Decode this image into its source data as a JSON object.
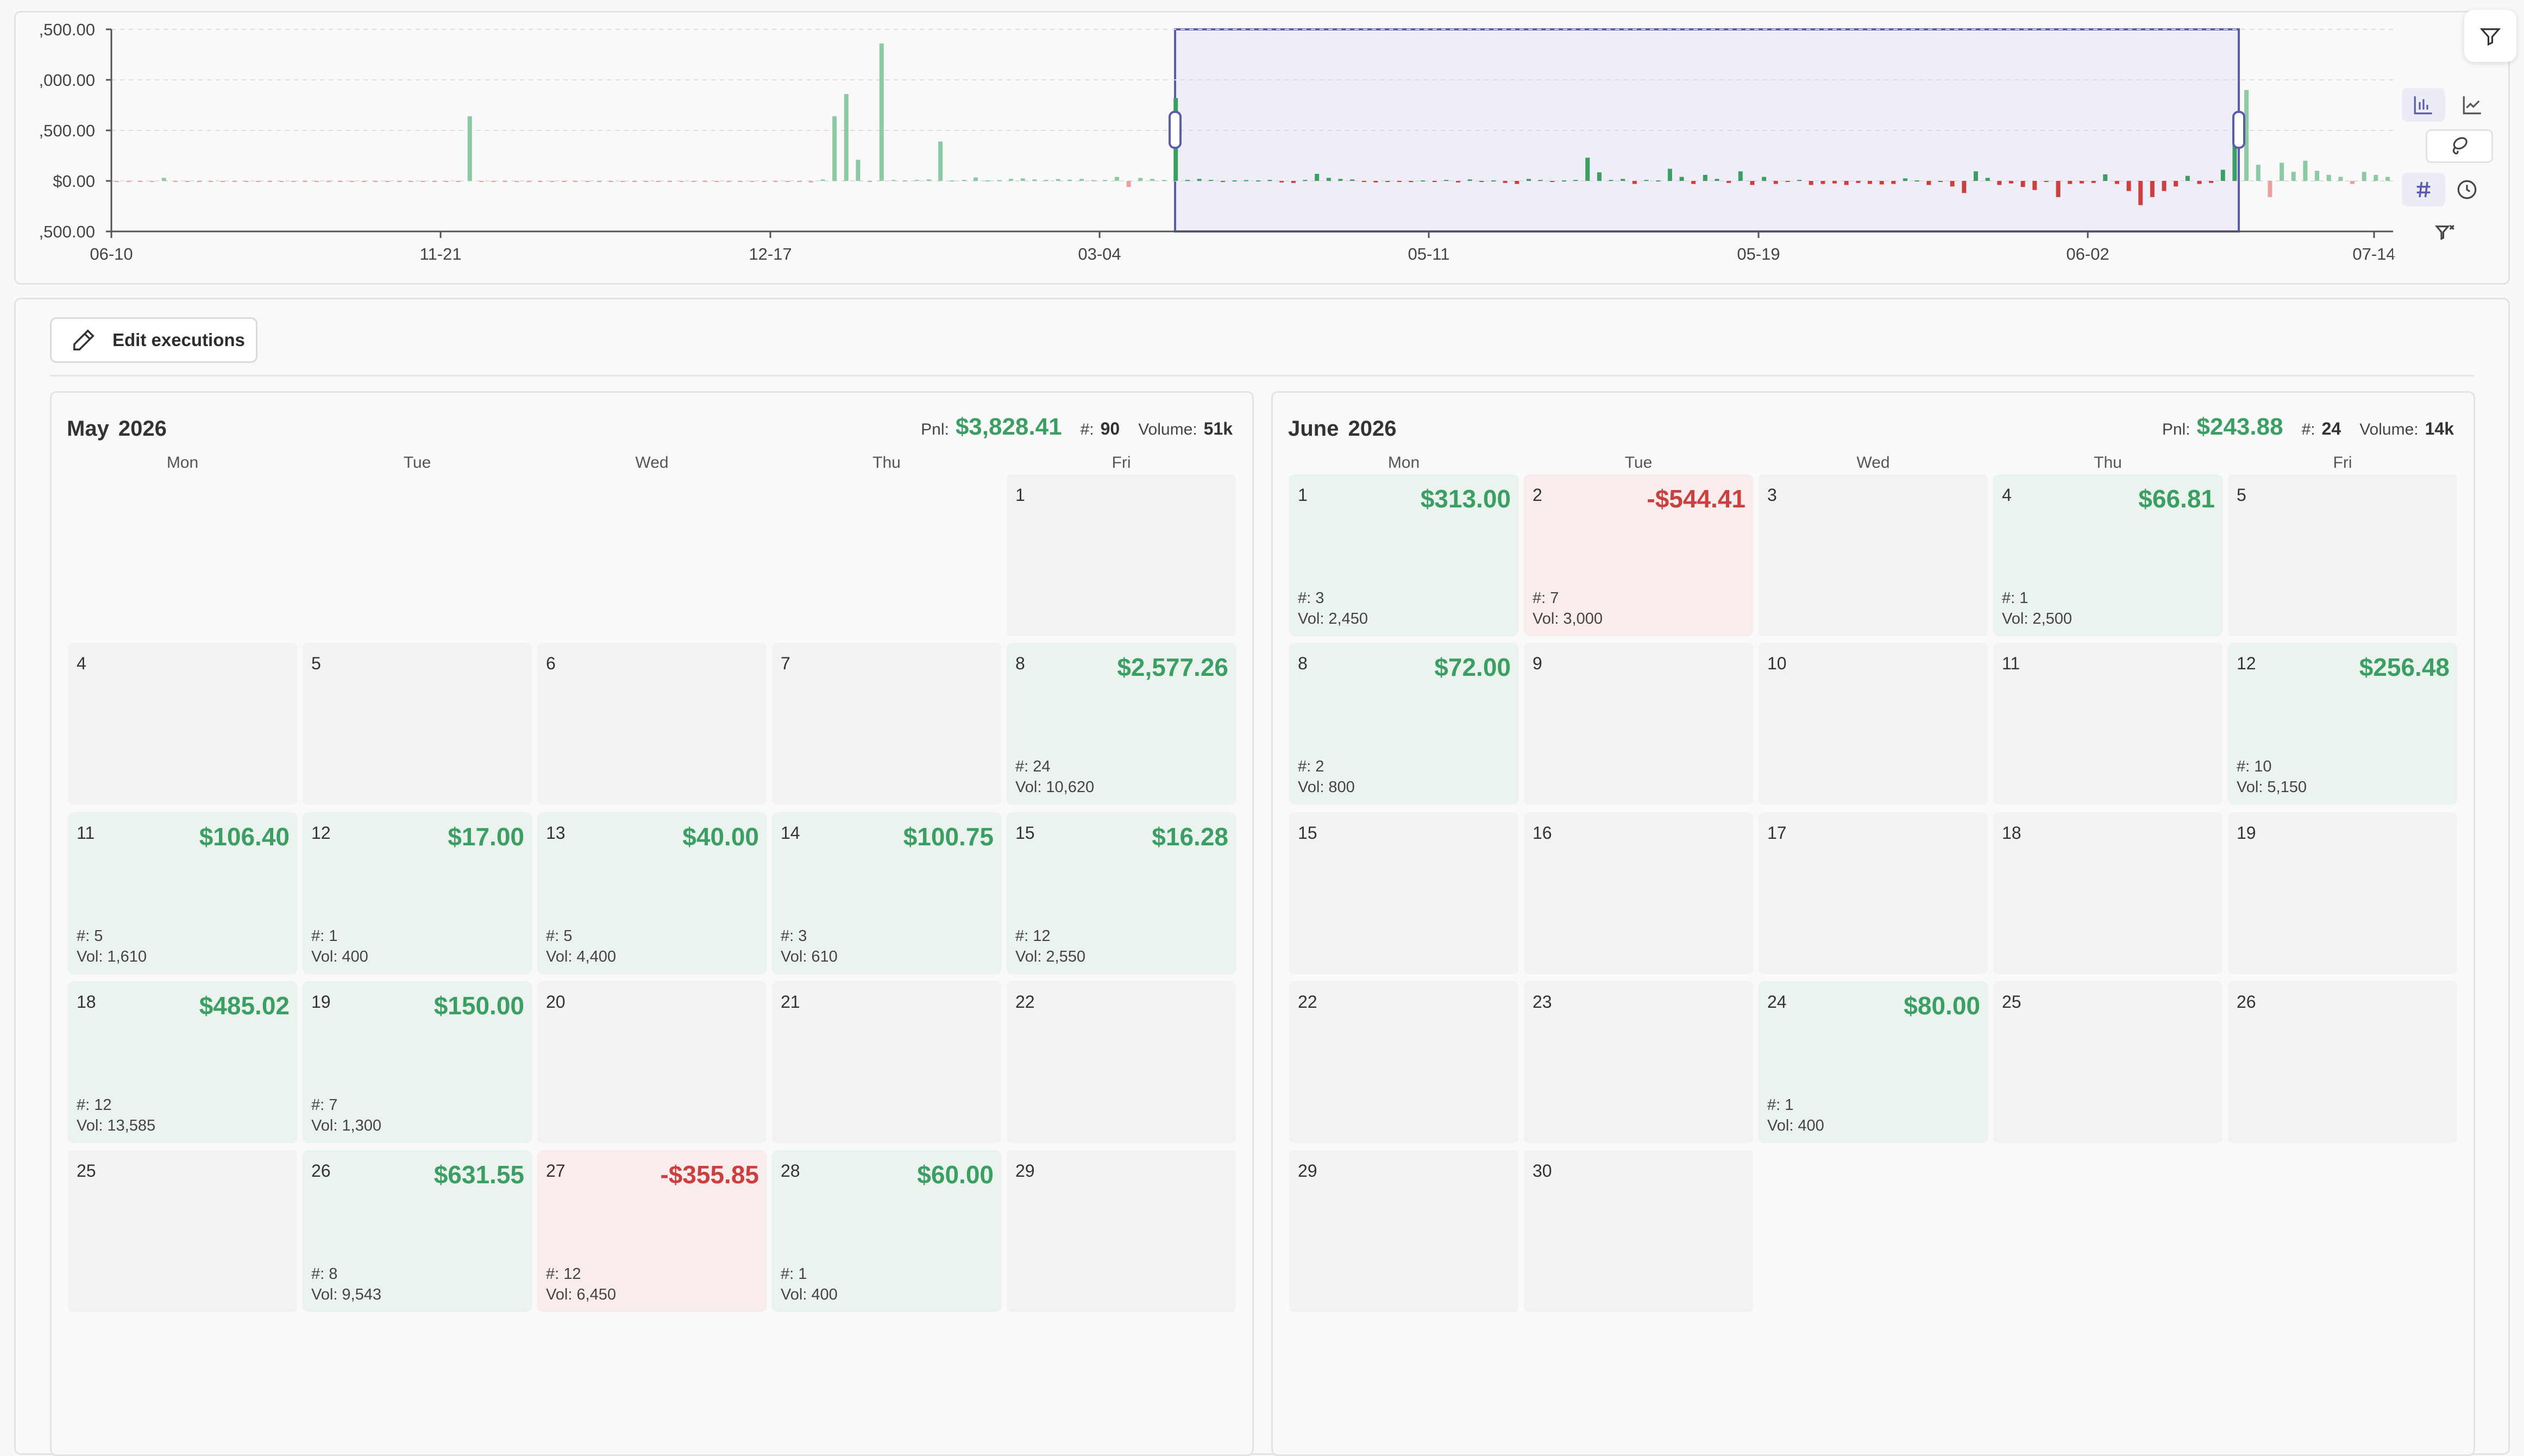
{
  "colors": {
    "gain": "#3b9f64",
    "loss": "#cc3f3f",
    "gain_light": "#8ccaa5",
    "loss_light": "#eba0a0",
    "selection": "#5b5bb0",
    "selection_fill": "#efeef8"
  },
  "chart": {
    "y_ticks": [
      ",500.00",
      ",000.00",
      ",500.00",
      "$0.00",
      ",500.00"
    ],
    "x_ticks": [
      "06-10",
      "11-21",
      "12-17",
      "03-04",
      "05-11",
      "05-19",
      "06-02",
      "07-14"
    ],
    "icons": [
      "bar-chart-icon",
      "line-chart-icon",
      "lasso-icon",
      "hash-icon",
      "clock-icon",
      "filter-clear-icon"
    ]
  },
  "chart_data": {
    "type": "bar",
    "y_axis_ticks": [
      1500,
      1000,
      500,
      0,
      -500
    ],
    "y_tick_labels": [
      ",500.00",
      ",000.00",
      ",500.00",
      "$0.00",
      ",500.00"
    ],
    "x_tick_labels": [
      "06-10",
      "11-21",
      "12-17",
      "03-04",
      "05-11",
      "05-19",
      "06-02",
      "07-14"
    ],
    "selected_range": [
      "03-04",
      "06-02"
    ],
    "values": [
      -8,
      -10,
      -6,
      -8,
      30,
      -5,
      -6,
      -4,
      -3,
      -5,
      -7,
      -4,
      -5,
      -6,
      -3,
      -4,
      -7,
      -5,
      -3,
      -6,
      -4,
      -5,
      -8,
      -4,
      -5,
      -6,
      -5,
      -4,
      -6,
      -5,
      640,
      -4,
      -6,
      -5,
      -7,
      -6,
      -5,
      -8,
      -6,
      -5,
      -4,
      -7,
      -6,
      -5,
      -4,
      -3,
      -4,
      -6,
      -5,
      -5,
      -4,
      -6,
      -5,
      -4,
      -5,
      -6,
      -4,
      -5,
      -7,
      -15,
      15,
      640,
      860,
      210,
      -10,
      1360,
      10,
      5,
      10,
      15,
      390,
      5,
      10,
      35,
      5,
      8,
      20,
      25,
      15,
      10,
      18,
      12,
      20,
      8,
      10,
      40,
      -60,
      30,
      20,
      10,
      820,
      10,
      20,
      10,
      -10,
      5,
      8,
      5,
      10,
      -15,
      -20,
      10,
      70,
      30,
      20,
      15,
      -10,
      -15,
      -8,
      -10,
      -12,
      5,
      -8,
      10,
      -15,
      15,
      -10,
      5,
      -20,
      -30,
      20,
      10,
      -10,
      5,
      10,
      230,
      85,
      10,
      20,
      -30,
      10,
      5,
      120,
      40,
      -30,
      60,
      20,
      -20,
      95,
      -40,
      40,
      -30,
      -10,
      10,
      -40,
      -30,
      -25,
      -40,
      -20,
      -30,
      -35,
      -30,
      25,
      5,
      -40,
      -10,
      -55,
      -120,
      95,
      30,
      -40,
      -25,
      -60,
      -90,
      -10,
      -160,
      -30,
      -25,
      -20,
      65,
      -30,
      -100,
      -240,
      -160,
      -100,
      -55,
      50,
      -30,
      -20,
      110,
      420,
      900,
      160,
      -160,
      180,
      90,
      200,
      100,
      60,
      40,
      -30,
      90,
      60,
      40
    ]
  },
  "toolbar": {
    "edit_label": "Edit executions"
  },
  "stat_labels": {
    "pnl": "Pnl:",
    "num": "#:",
    "volume": "Volume:"
  },
  "months": [
    {
      "title": "May 2026",
      "pnl": "$3,828.41",
      "num": "90",
      "volume": "51k",
      "dow": [
        "Mon",
        "Tue",
        "Wed",
        "Thu",
        "Fri"
      ],
      "weeks": [
        [
          null,
          null,
          null,
          null,
          {
            "day": "1"
          }
        ],
        [
          {
            "day": "4"
          },
          {
            "day": "5"
          },
          {
            "day": "6"
          },
          {
            "day": "7"
          },
          {
            "day": "8",
            "pnl": "$2,577.26",
            "trades": "#: 24",
            "vol": "Vol: 10,620",
            "kind": "gain"
          }
        ],
        [
          {
            "day": "11",
            "pnl": "$106.40",
            "trades": "#: 5",
            "vol": "Vol: 1,610",
            "kind": "gain"
          },
          {
            "day": "12",
            "pnl": "$17.00",
            "trades": "#: 1",
            "vol": "Vol: 400",
            "kind": "gain"
          },
          {
            "day": "13",
            "pnl": "$40.00",
            "trades": "#: 5",
            "vol": "Vol: 4,400",
            "kind": "gain"
          },
          {
            "day": "14",
            "pnl": "$100.75",
            "trades": "#: 3",
            "vol": "Vol: 610",
            "kind": "gain"
          },
          {
            "day": "15",
            "pnl": "$16.28",
            "trades": "#: 12",
            "vol": "Vol: 2,550",
            "kind": "gain"
          }
        ],
        [
          {
            "day": "18",
            "pnl": "$485.02",
            "trades": "#: 12",
            "vol": "Vol: 13,585",
            "kind": "gain"
          },
          {
            "day": "19",
            "pnl": "$150.00",
            "trades": "#: 7",
            "vol": "Vol: 1,300",
            "kind": "gain"
          },
          {
            "day": "20"
          },
          {
            "day": "21"
          },
          {
            "day": "22"
          }
        ],
        [
          {
            "day": "25"
          },
          {
            "day": "26",
            "pnl": "$631.55",
            "trades": "#: 8",
            "vol": "Vol: 9,543",
            "kind": "gain"
          },
          {
            "day": "27",
            "pnl": "-$355.85",
            "trades": "#: 12",
            "vol": "Vol: 6,450",
            "kind": "loss"
          },
          {
            "day": "28",
            "pnl": "$60.00",
            "trades": "#: 1",
            "vol": "Vol: 400",
            "kind": "gain"
          },
          {
            "day": "29"
          }
        ]
      ]
    },
    {
      "title": "June 2026",
      "pnl": "$243.88",
      "num": "24",
      "volume": "14k",
      "dow": [
        "Mon",
        "Tue",
        "Wed",
        "Thu",
        "Fri"
      ],
      "weeks": [
        [
          {
            "day": "1",
            "pnl": "$313.00",
            "trades": "#: 3",
            "vol": "Vol: 2,450",
            "kind": "gain"
          },
          {
            "day": "2",
            "pnl": "-$544.41",
            "trades": "#: 7",
            "vol": "Vol: 3,000",
            "kind": "loss"
          },
          {
            "day": "3"
          },
          {
            "day": "4",
            "pnl": "$66.81",
            "trades": "#: 1",
            "vol": "Vol: 2,500",
            "kind": "gain"
          },
          {
            "day": "5"
          }
        ],
        [
          {
            "day": "8",
            "pnl": "$72.00",
            "trades": "#: 2",
            "vol": "Vol: 800",
            "kind": "gain"
          },
          {
            "day": "9"
          },
          {
            "day": "10"
          },
          {
            "day": "11"
          },
          {
            "day": "12",
            "pnl": "$256.48",
            "trades": "#: 10",
            "vol": "Vol: 5,150",
            "kind": "gain"
          }
        ],
        [
          {
            "day": "15"
          },
          {
            "day": "16"
          },
          {
            "day": "17"
          },
          {
            "day": "18"
          },
          {
            "day": "19"
          }
        ],
        [
          {
            "day": "22"
          },
          {
            "day": "23"
          },
          {
            "day": "24",
            "pnl": "$80.00",
            "trades": "#: 1",
            "vol": "Vol: 400",
            "kind": "gain"
          },
          {
            "day": "25"
          },
          {
            "day": "26"
          }
        ],
        [
          {
            "day": "29"
          },
          {
            "day": "30"
          },
          null,
          null,
          null
        ]
      ]
    }
  ]
}
